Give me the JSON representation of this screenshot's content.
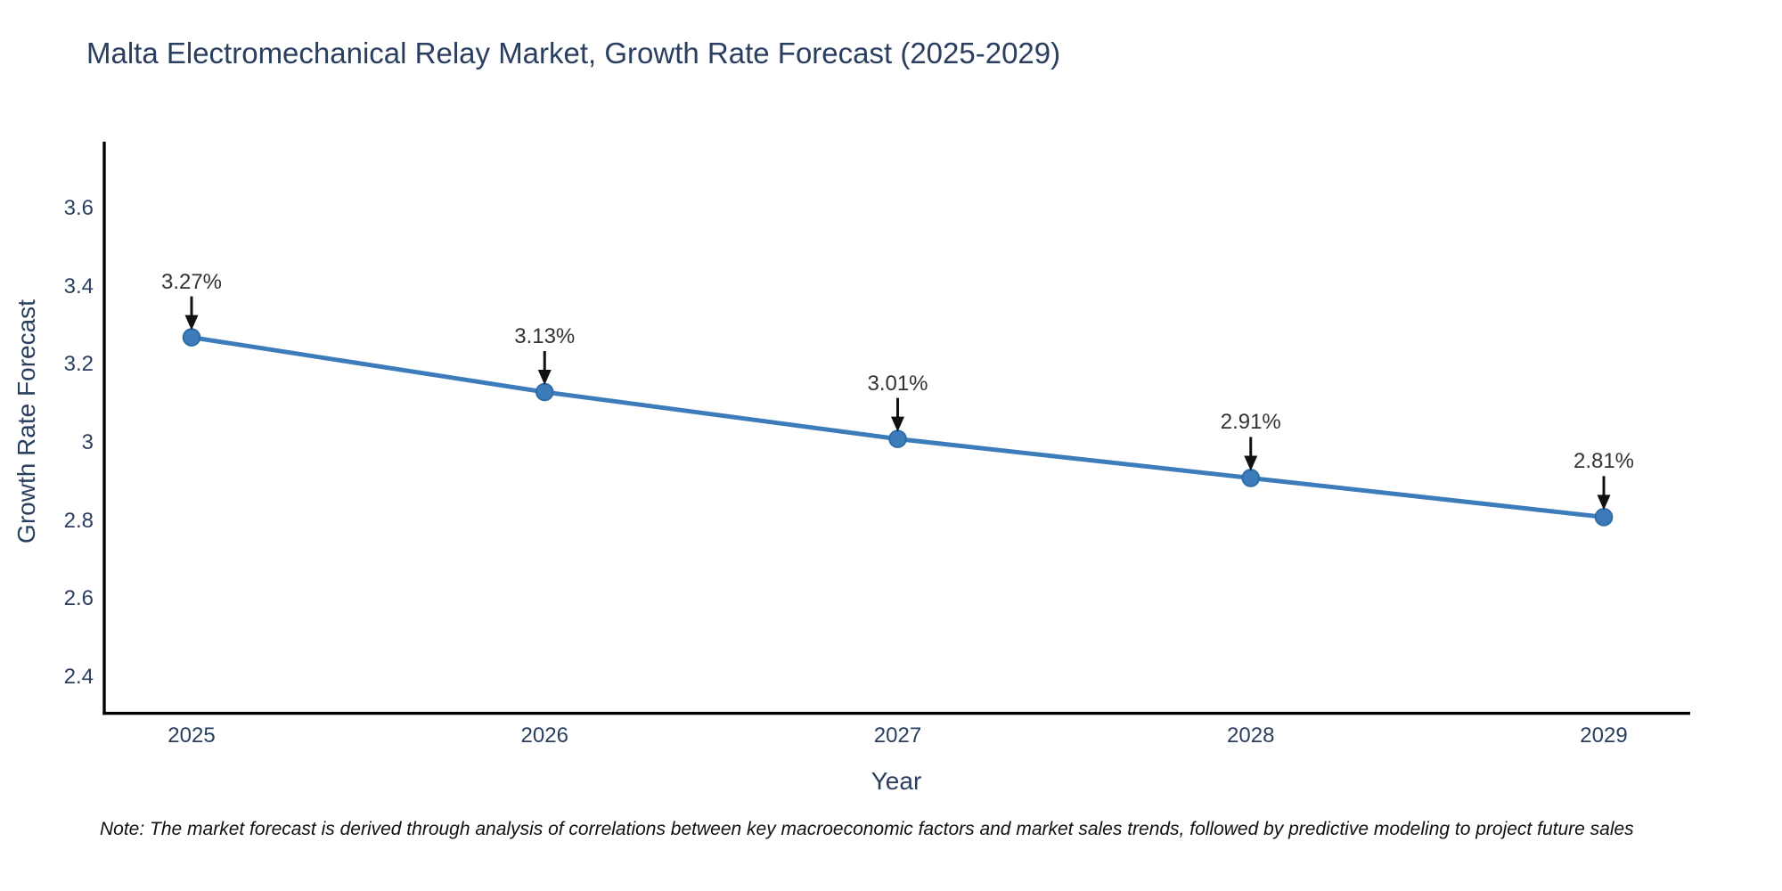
{
  "note": "Note: The market forecast is derived through analysis of correlations between key macroeconomic factors and market sales trends, followed by predictive modeling to project future sales",
  "chart_data": {
    "type": "line",
    "title": "Malta Electromechanical Relay Market, Growth Rate Forecast (2025-2029)",
    "xlabel": "Year",
    "ylabel": "Growth Rate Forecast",
    "x": [
      2025,
      2026,
      2027,
      2028,
      2029
    ],
    "y": [
      3.27,
      3.13,
      3.01,
      2.91,
      2.81
    ],
    "point_labels": [
      "3.27%",
      "3.13%",
      "3.01%",
      "2.91%",
      "2.81%"
    ],
    "x_tick_labels": [
      "2025",
      "2026",
      "2027",
      "2028",
      "2029"
    ],
    "y_tick_values": [
      3.6,
      3.4,
      3.2,
      3.0,
      2.8,
      2.6,
      2.4
    ],
    "y_tick_labels": [
      "3.6",
      "3.4",
      "3.2",
      "3",
      "2.8",
      "2.6",
      "2.4"
    ],
    "xlim": [
      2024.75,
      2029.25
    ],
    "ylim": [
      2.31,
      3.77
    ],
    "grid": false,
    "legend": false,
    "markers": "circle",
    "annotation_arrows": "down",
    "colors": {
      "line": "#3c7cba",
      "marker_fill": "#3c7cba",
      "marker_edge": "#2e6ca5",
      "axis": "#000000",
      "text": "#2a3f5f",
      "annotation_text": "#333333",
      "arrow": "#111111",
      "background": "#ffffff"
    }
  }
}
